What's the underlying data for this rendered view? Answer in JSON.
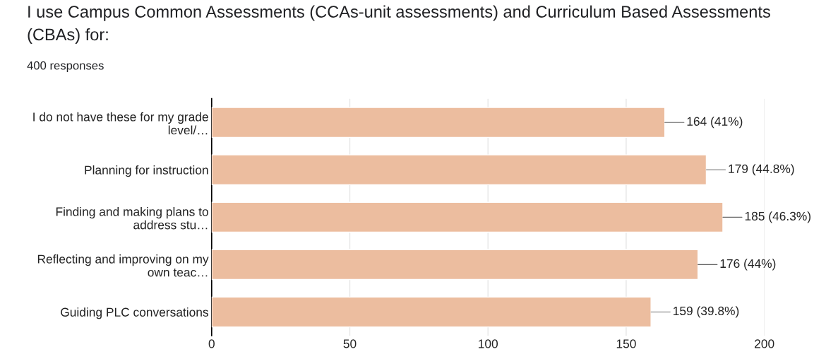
{
  "chart_data": {
    "type": "bar",
    "orientation": "horizontal",
    "title": "I use Campus Common Assessments (CCAs-unit assessments) and Curriculum Based Assessments (CBAs) for:",
    "subtitle": "400 responses",
    "categories": [
      "I do not have these for my grade\nlevel/…",
      "Planning for instruction",
      "Finding and making plans to\naddress stu…",
      "Reflecting and improving on my\nown teac…",
      "Guiding PLC conversations"
    ],
    "values": [
      164,
      179,
      185,
      176,
      159
    ],
    "value_labels": [
      "164 (41%)",
      "179 (44.8%)",
      "185 (46.3%)",
      "176 (44%)",
      "159 (39.8%)"
    ],
    "color": "#ecbd9f",
    "xlim": [
      0,
      200
    ],
    "xticks": [
      0,
      50,
      100,
      150,
      200
    ],
    "grid": "x"
  }
}
